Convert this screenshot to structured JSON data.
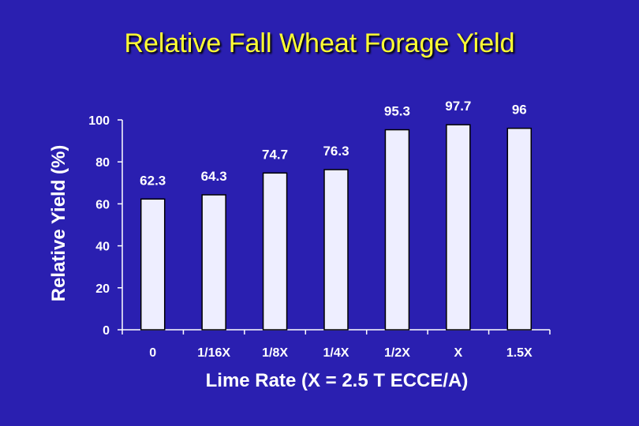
{
  "chart_data": {
    "type": "bar",
    "title": "Relative Fall Wheat Forage Yield",
    "xlabel": "Lime Rate (X = 2.5 T ECCE/A)",
    "ylabel": "Relative Yield (%)",
    "categories": [
      "0",
      "1/16X",
      "1/8X",
      "1/4X",
      "1/2X",
      "X",
      "1.5X"
    ],
    "values": [
      62.3,
      64.3,
      74.7,
      76.3,
      95.3,
      97.7,
      96
    ],
    "data_labels": [
      "62.3",
      "64.3",
      "74.7",
      "76.3",
      "95.3",
      "97.7",
      "96"
    ],
    "ylim": [
      0,
      100
    ],
    "yticks": [
      0,
      20,
      40,
      60,
      80,
      100
    ],
    "grid": false,
    "legend": "none",
    "colors": {
      "background": "#2a1fb0",
      "bar_fill": "#eeeeff",
      "bar_stroke": "#000000",
      "axis": "#ffffff",
      "text": "#ffffff",
      "title": "#ffff33"
    }
  }
}
